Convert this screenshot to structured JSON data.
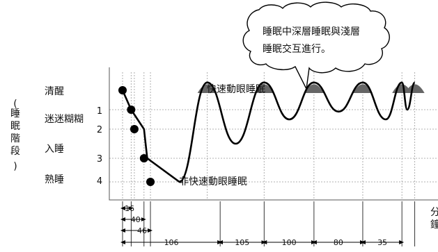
{
  "chart_data": {
    "type": "line",
    "ylabel": "睡眠階段",
    "xlabel": "分鐘",
    "stage_labels": [
      "清醒",
      "迷迷糊糊",
      "入睡",
      "熟睡"
    ],
    "stage_numbers": [
      "1",
      "2",
      "3",
      "4"
    ],
    "series": [
      {
        "x": [
          0,
          16,
          40,
          46,
          106,
          158,
          211,
          264,
          311,
          357,
          403,
          448,
          491,
          521,
          531,
          545
        ],
        "y": [
          0,
          1,
          2,
          3,
          4,
          -0.4,
          2.5,
          -0.4,
          1.5,
          -0.4,
          1.1,
          -0.4,
          1.5,
          -0.4,
          1.0,
          -0.4
        ]
      }
    ],
    "markers": [
      {
        "x": 0,
        "y": 0
      },
      {
        "x": 16,
        "y": 1
      },
      {
        "x": 22,
        "y": 2
      },
      {
        "x": 40,
        "y": 3
      },
      {
        "x": 52,
        "y": 4
      }
    ],
    "interval_labels": [
      "16",
      "40",
      "46",
      "106",
      "105",
      "100",
      "80",
      "35"
    ],
    "annotations": {
      "rem": "快速動眼睡眠",
      "nrem": "非快速動眼睡眠",
      "bubble_line1": "睡眠中深層睡眠與淺層",
      "bubble_line2": "睡眠交互進行。"
    },
    "grid": true
  }
}
